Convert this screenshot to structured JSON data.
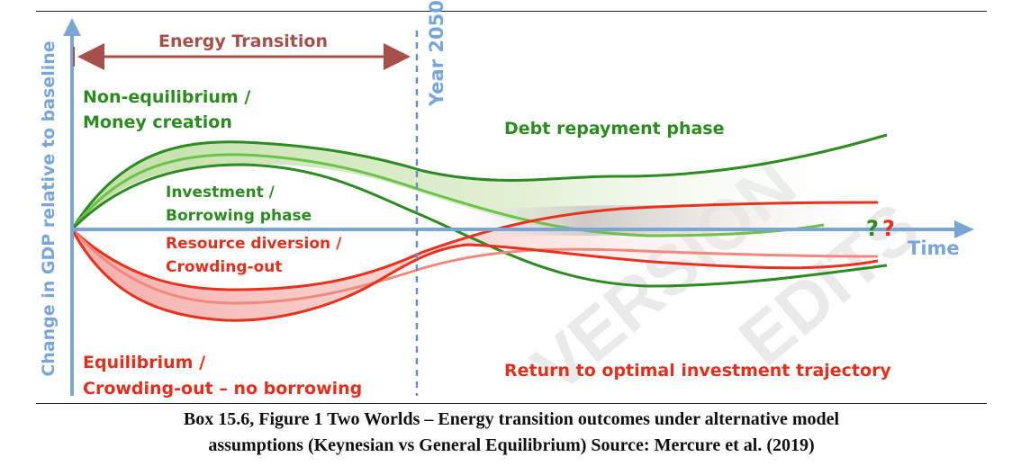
{
  "diagram": {
    "axis": {
      "y_label": "Change in GDP relative to baseline",
      "x_label": "Time"
    },
    "labels": {
      "energy_transition": "Energy Transition",
      "year_2050": "Year 2050",
      "non_eq_line1": "Non-equilibrium /",
      "non_eq_line2": "Money creation",
      "debt_repayment": "Debt repayment phase",
      "investment_line1": "Investment /",
      "investment_line2": "Borrowing phase",
      "resource_line1": "Resource diversion /",
      "resource_line2": "Crowding-out",
      "question_green": "?",
      "question_red": "?",
      "eq_line1": "Equilibrium /",
      "eq_line2": "Crowding-out – no borrowing",
      "return_optimal": "Return to optimal investment trajectory"
    },
    "colors": {
      "green_dark": "#2e8a22",
      "green_light": "#6cc24a",
      "red": "#e8321e",
      "arrow_brown": "#a5504a",
      "axis_blue": "#7aa6d6",
      "text_green": "#2e8a22",
      "text_red": "#e0301e"
    }
  },
  "watermark": [
    "VERSION",
    "EDITS"
  ],
  "caption": {
    "line1": "Box 15.6, Figure 1 Two Worlds – Energy transition outcomes under alternative model",
    "line2": "assumptions (Keynesian vs General Equilibrium) Source: Mercure et al. (2019)"
  }
}
